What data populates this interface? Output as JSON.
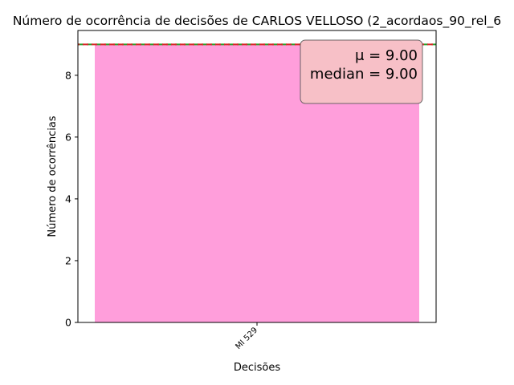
{
  "chart_data": {
    "type": "bar",
    "title": "Número de ocorrência de decisões de CARLOS VELLOSO (2_acordaos_90_rel_6",
    "xlabel": "Decisões",
    "ylabel": "Número de ocorrências",
    "categories": [
      "MI 529"
    ],
    "values": [
      9
    ],
    "ylim": [
      0,
      9.45
    ],
    "yticks": [
      0,
      2,
      4,
      6,
      8
    ],
    "ytick_labels": [
      "0",
      "2",
      "4",
      "6",
      "8"
    ],
    "bar_color": "#ff9edb",
    "mean": 9.0,
    "median": 9.0,
    "mean_line_color": "#d62728",
    "median_line_color": "#2ca02c",
    "stats_box": {
      "mean_text": "μ = 9.00",
      "median_text": "median = 9.00",
      "background": "#f7c0c7",
      "location": "top-right"
    },
    "grid": false
  }
}
